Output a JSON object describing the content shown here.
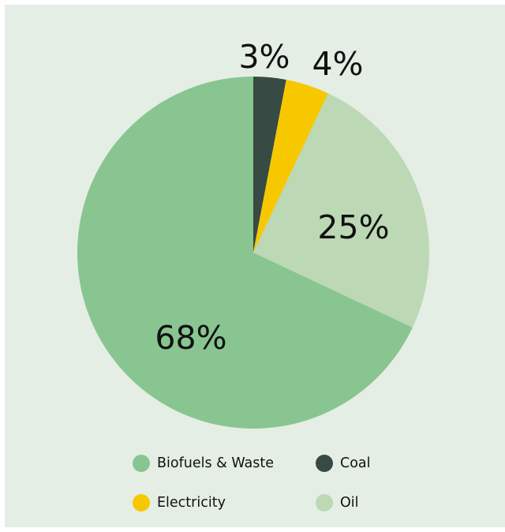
{
  "chart_data": {
    "type": "pie",
    "title": "",
    "start_angle_deg": 0,
    "direction": "clockwise",
    "slices": [
      {
        "name": "Coal",
        "value": 3,
        "label": "3%",
        "color": "#374a44"
      },
      {
        "name": "Electricity",
        "value": 4,
        "label": "4%",
        "color": "#f7c800"
      },
      {
        "name": "Oil",
        "value": 25,
        "label": "25%",
        "color": "#bcd8b4"
      },
      {
        "name": "Biofuels & Waste",
        "value": 68,
        "label": "68%",
        "color": "#89c590"
      }
    ],
    "legend": {
      "placement": "bottom",
      "order": [
        "Biofuels & Waste",
        "Coal",
        "Electricity",
        "Oil"
      ]
    }
  }
}
